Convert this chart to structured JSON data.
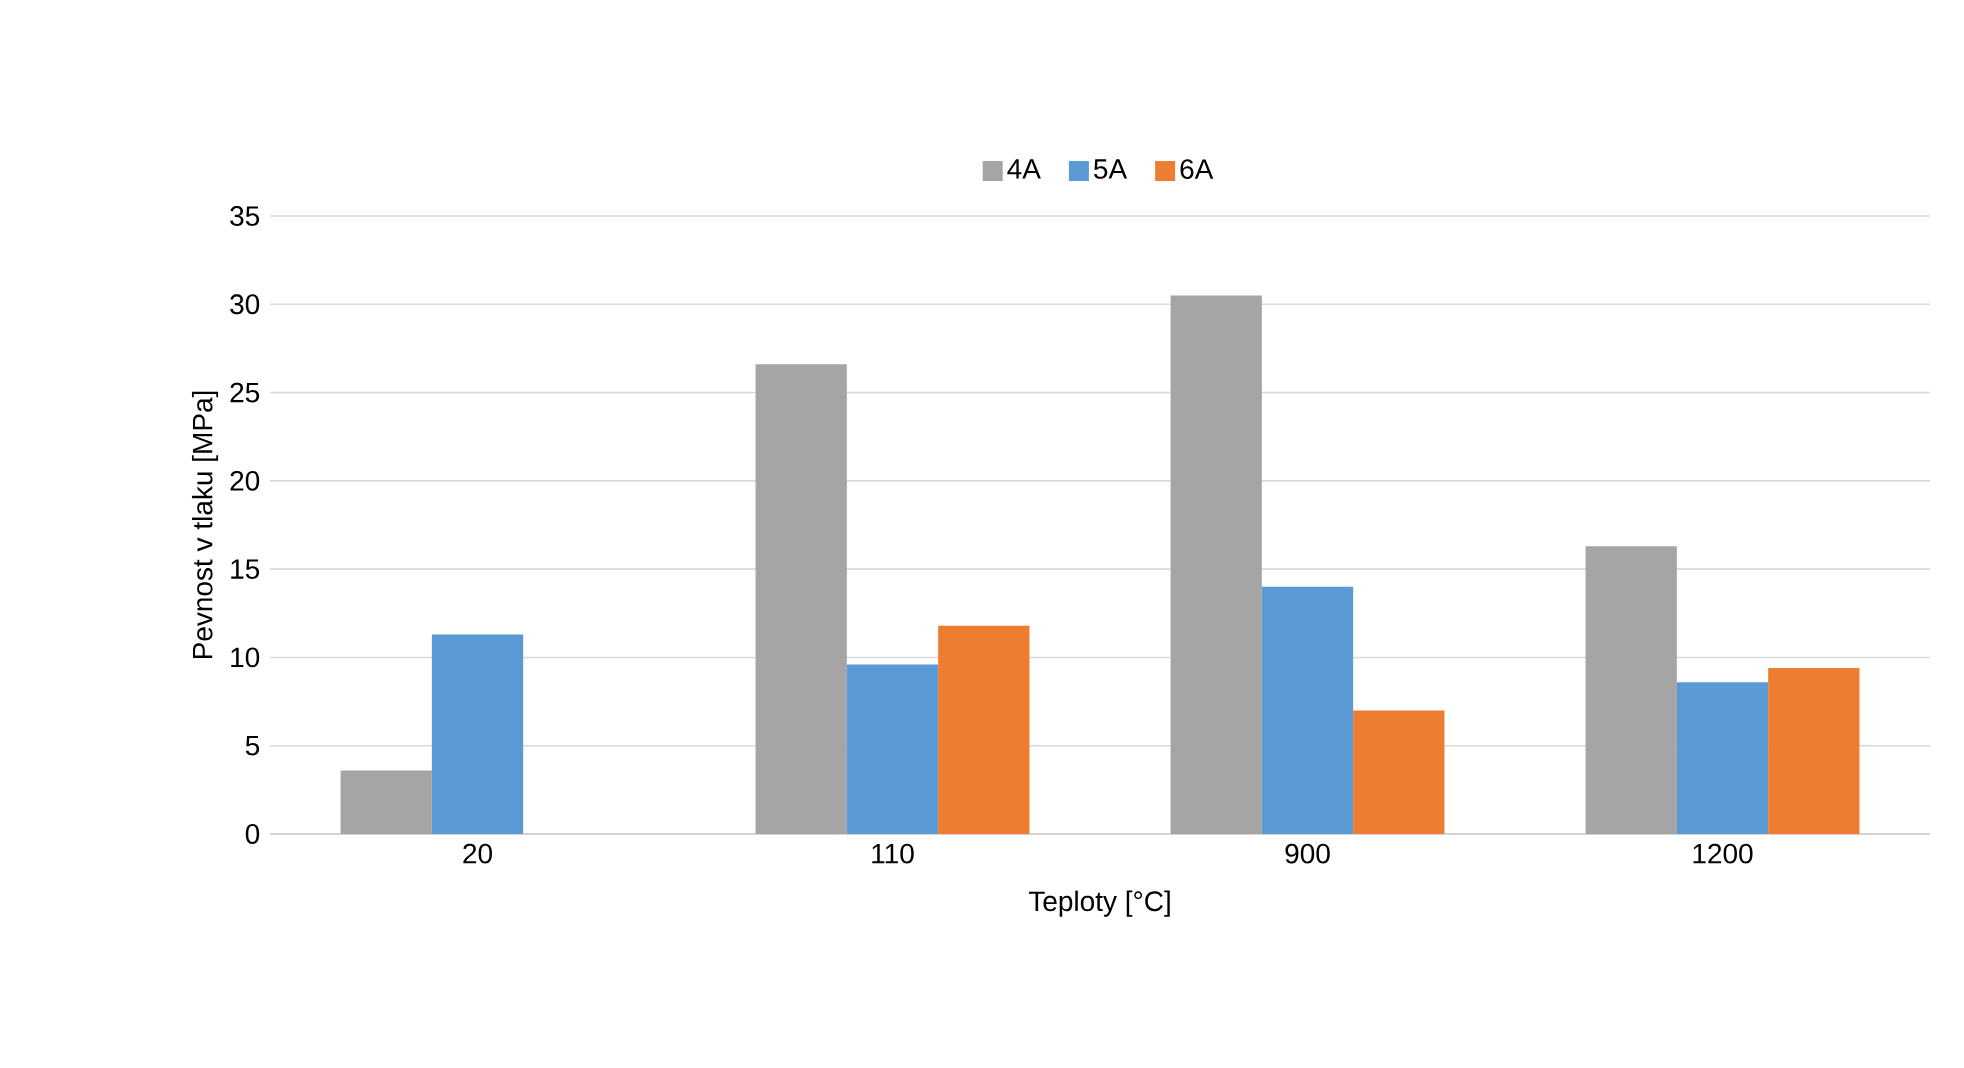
{
  "chart_data": {
    "type": "bar",
    "xlabel": "Teploty [°C]",
    "ylabel": "Pevnost v tlaku [MPa]",
    "categories": [
      "20",
      "110",
      "900",
      "1200"
    ],
    "series": [
      {
        "name": "4A",
        "color": "#a5a5a5",
        "values": [
          3.6,
          26.6,
          30.5,
          16.3
        ]
      },
      {
        "name": "5A",
        "color": "#5b9bd5",
        "values": [
          11.3,
          9.6,
          14.0,
          8.6
        ]
      },
      {
        "name": "6A",
        "color": "#ed7d31",
        "values": [
          null,
          11.8,
          7.0,
          9.4
        ]
      }
    ],
    "ylim": [
      0,
      35
    ],
    "yticks": [
      0,
      5,
      10,
      15,
      20,
      25,
      30,
      35
    ],
    "grid": "y",
    "legend": "top"
  }
}
